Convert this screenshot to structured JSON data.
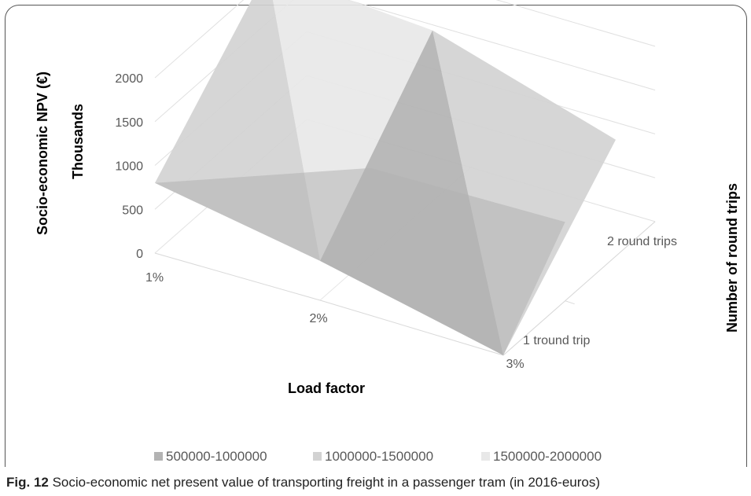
{
  "chart_data": {
    "type": "surface",
    "x_axis": {
      "label": "Load factor",
      "categories": [
        "1%",
        "2%",
        "3%"
      ]
    },
    "y_axis": {
      "label": "Number of round trips",
      "categories": [
        "1 tround trip",
        "2 round trips"
      ]
    },
    "z_axis": {
      "label": "Socio-economic NPV (€)",
      "unit_label": "Thousands",
      "ticks": [
        0,
        500,
        1000,
        1500,
        2000
      ],
      "range": [
        0,
        2300
      ]
    },
    "grid": true,
    "values": [
      {
        "load_factor": "1%",
        "round_trips": "1 tround trip",
        "npv_thousands": 800
      },
      {
        "load_factor": "2%",
        "round_trips": "1 tround trip",
        "npv_thousands": 450
      },
      {
        "load_factor": "3%",
        "round_trips": "1 tround trip",
        "npv_thousands": 0
      },
      {
        "load_factor": "1%",
        "round_trips": "2 round trips",
        "npv_thousands": 2100
      },
      {
        "load_factor": "2%",
        "round_trips": "2 round trips",
        "npv_thousands": 1950
      },
      {
        "load_factor": "3%",
        "round_trips": "2 round trips",
        "npv_thousands": 1330
      }
    ],
    "legend": {
      "position": "bottom",
      "items": [
        {
          "label": "500000-1000000",
          "color": "#b3b3b3"
        },
        {
          "label": "1000000-1500000",
          "color": "#d2d2d2"
        },
        {
          "label": "1500000-2000000",
          "color": "#e8e8e8"
        }
      ]
    }
  },
  "caption": {
    "label": "Fig. 12",
    "text": "Socio-economic net present value of transporting freight in a passenger tram (in 2016-euros)"
  }
}
